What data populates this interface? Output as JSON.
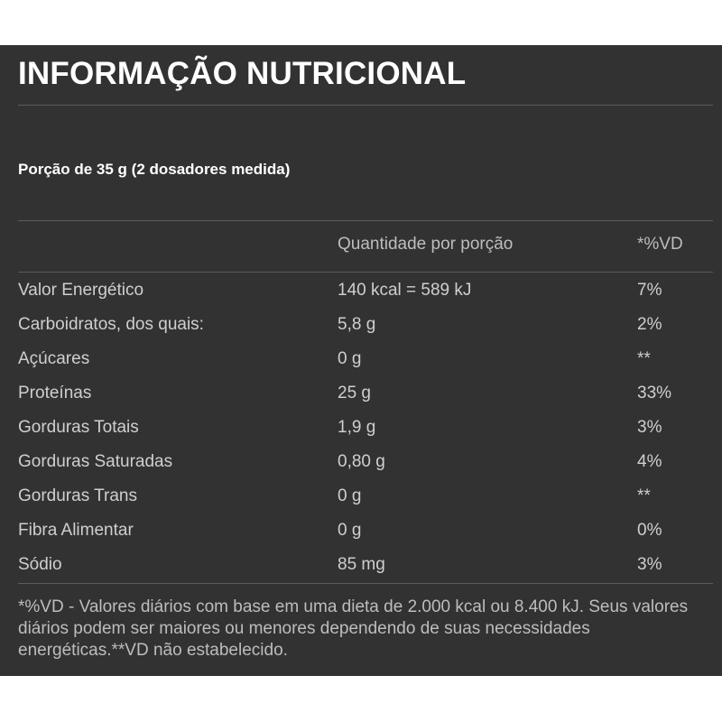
{
  "title": "INFORMAÇÃO NUTRICIONAL",
  "portion": "Porção de 35 g (2 dosadores medida)",
  "columns": {
    "quantity": "Quantidade por porção",
    "dv": "*%VD"
  },
  "rows": [
    {
      "name": "Valor Energético",
      "quantity": "140 kcal = 589 kJ",
      "dv": "7%"
    },
    {
      "name": "Carboidratos, dos quais:",
      "quantity": "5,8 g",
      "dv": "2%"
    },
    {
      "name": "Açúcares",
      "quantity": "0 g",
      "dv": "**"
    },
    {
      "name": "Proteínas",
      "quantity": "25 g",
      "dv": "33%"
    },
    {
      "name": "Gorduras Totais",
      "quantity": "1,9 g",
      "dv": "3%"
    },
    {
      "name": "Gorduras Saturadas",
      "quantity": "0,80 g",
      "dv": "4%"
    },
    {
      "name": "Gorduras Trans",
      "quantity": "0 g",
      "dv": "**"
    },
    {
      "name": "Fibra Alimentar",
      "quantity": "0 g",
      "dv": "0%"
    },
    {
      "name": "Sódio",
      "quantity": "85 mg",
      "dv": "3%"
    }
  ],
  "footnote": "*%VD - Valores diários com base em uma dieta de 2.000 kcal ou 8.400 kJ. Seus valores diários podem ser maiores ou menores dependendo de suas necessidades energéticas.**VD não estabelecido."
}
